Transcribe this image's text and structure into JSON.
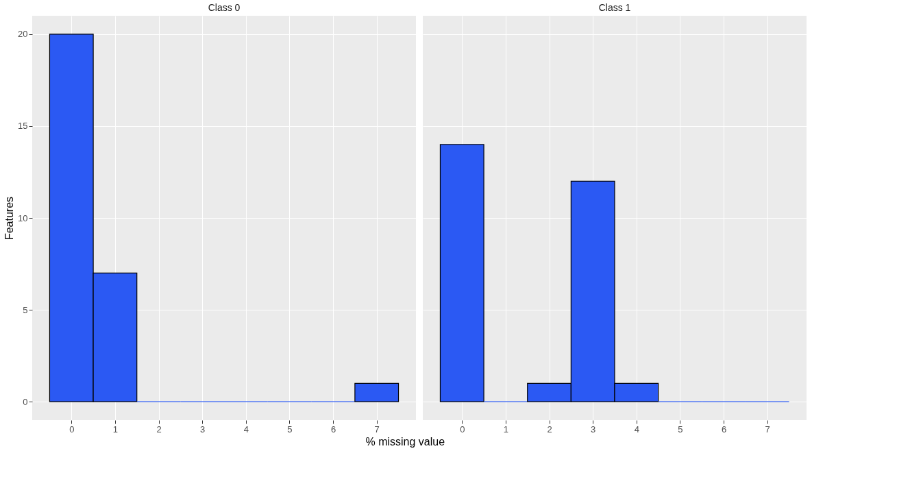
{
  "chart_data": [
    {
      "type": "histogram",
      "title": "Class 0",
      "xlabel": "% missing value",
      "ylabel": "Features",
      "bins": [
        -0.5,
        0.5,
        1.5,
        2.5,
        3.5,
        4.5,
        5.5,
        6.5,
        7.5
      ],
      "values": [
        20,
        7,
        0,
        0,
        0,
        0,
        0,
        1
      ],
      "color": "#2b59f3",
      "xlim": [
        -0.9,
        7.9
      ],
      "xticks": [
        0,
        1,
        2,
        3,
        4,
        5,
        6,
        7
      ],
      "ylim": [
        -1,
        21
      ],
      "yticks": [
        0,
        5,
        10,
        15,
        20
      ],
      "grid": true
    },
    {
      "type": "histogram",
      "title": "Class 1",
      "bins": [
        -0.5,
        0.5,
        1.5,
        2.5,
        3.5,
        4.5,
        5.5,
        6.5,
        7.5
      ],
      "values": [
        14,
        0,
        1,
        12,
        1,
        0,
        0,
        0
      ],
      "color": "#2b59f3",
      "xlim": [
        -0.9,
        7.9
      ],
      "xticks": [
        0,
        1,
        2,
        3,
        4,
        5,
        6,
        7
      ],
      "ylim": [
        -1,
        21
      ],
      "yticks": [
        0,
        5,
        10,
        15,
        20
      ],
      "grid": true,
      "tick_labels": "x"
    }
  ]
}
